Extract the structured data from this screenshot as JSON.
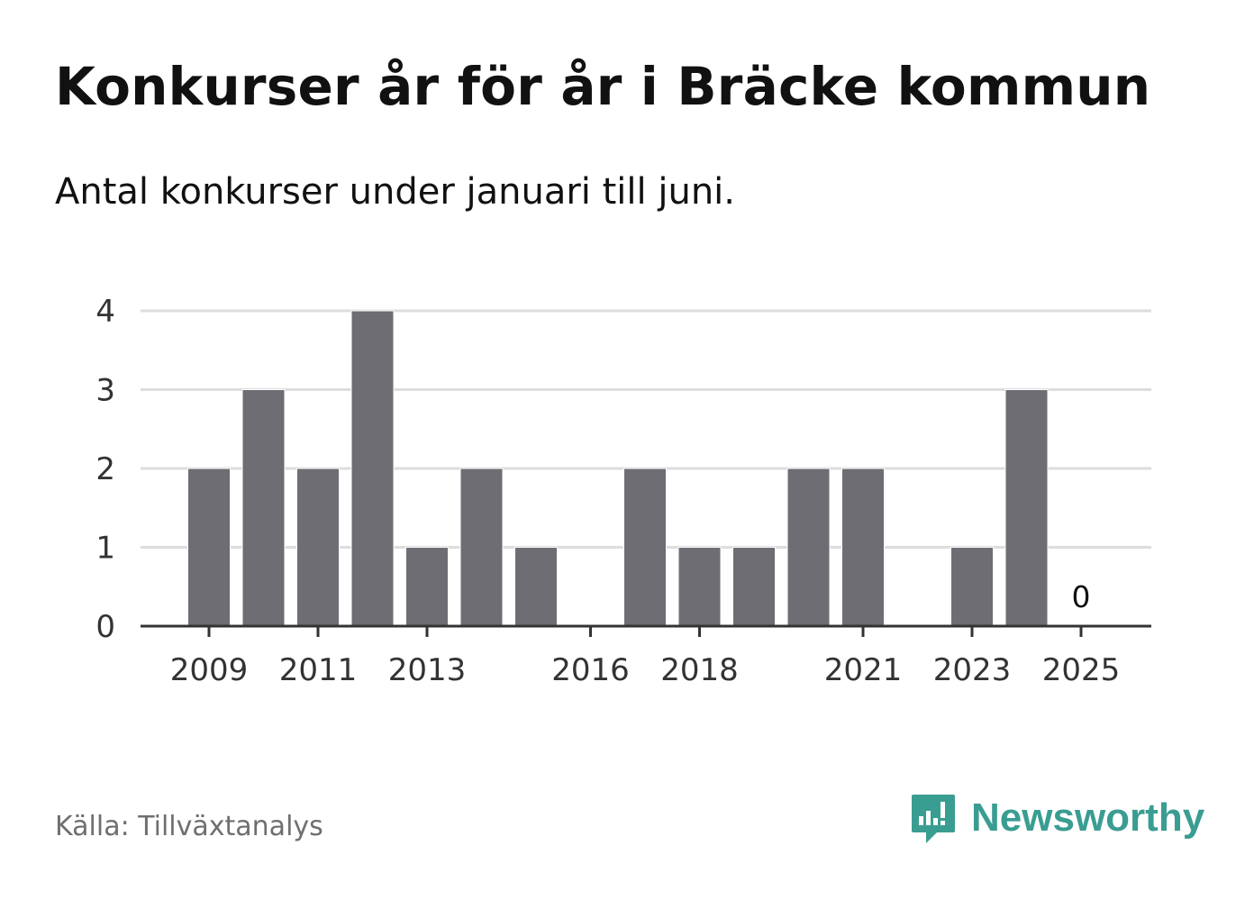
{
  "header": {
    "title": "Konkurser år för år i Bräcke kommun",
    "subtitle": "Antal konkurser under januari till juni."
  },
  "footer": {
    "source": "Källa: Tillväxtanalys",
    "brand": "Newsworthy",
    "brand_color": "#3a9d92"
  },
  "colors": {
    "bar": "#6e6d73",
    "grid": "#dddddd",
    "axis": "#333333"
  },
  "chart_data": {
    "type": "bar",
    "categories": [
      "2009",
      "2010",
      "2011",
      "2012",
      "2013",
      "2014",
      "2015",
      "2016",
      "2017",
      "2018",
      "2019",
      "2020",
      "2021",
      "2022",
      "2023",
      "2024",
      "2025"
    ],
    "values": [
      2,
      3,
      2,
      4,
      1,
      2,
      1,
      0,
      2,
      1,
      1,
      2,
      2,
      0,
      1,
      3,
      0
    ],
    "x_tick_labels": [
      "2009",
      "2011",
      "2013",
      "2016",
      "2018",
      "2021",
      "2023",
      "2025"
    ],
    "y_ticks": [
      0,
      1,
      2,
      3,
      4
    ],
    "ylim": [
      0,
      4
    ],
    "annotations": [
      {
        "category": "2025",
        "text": "0"
      }
    ],
    "grid": true,
    "legend": "none"
  }
}
